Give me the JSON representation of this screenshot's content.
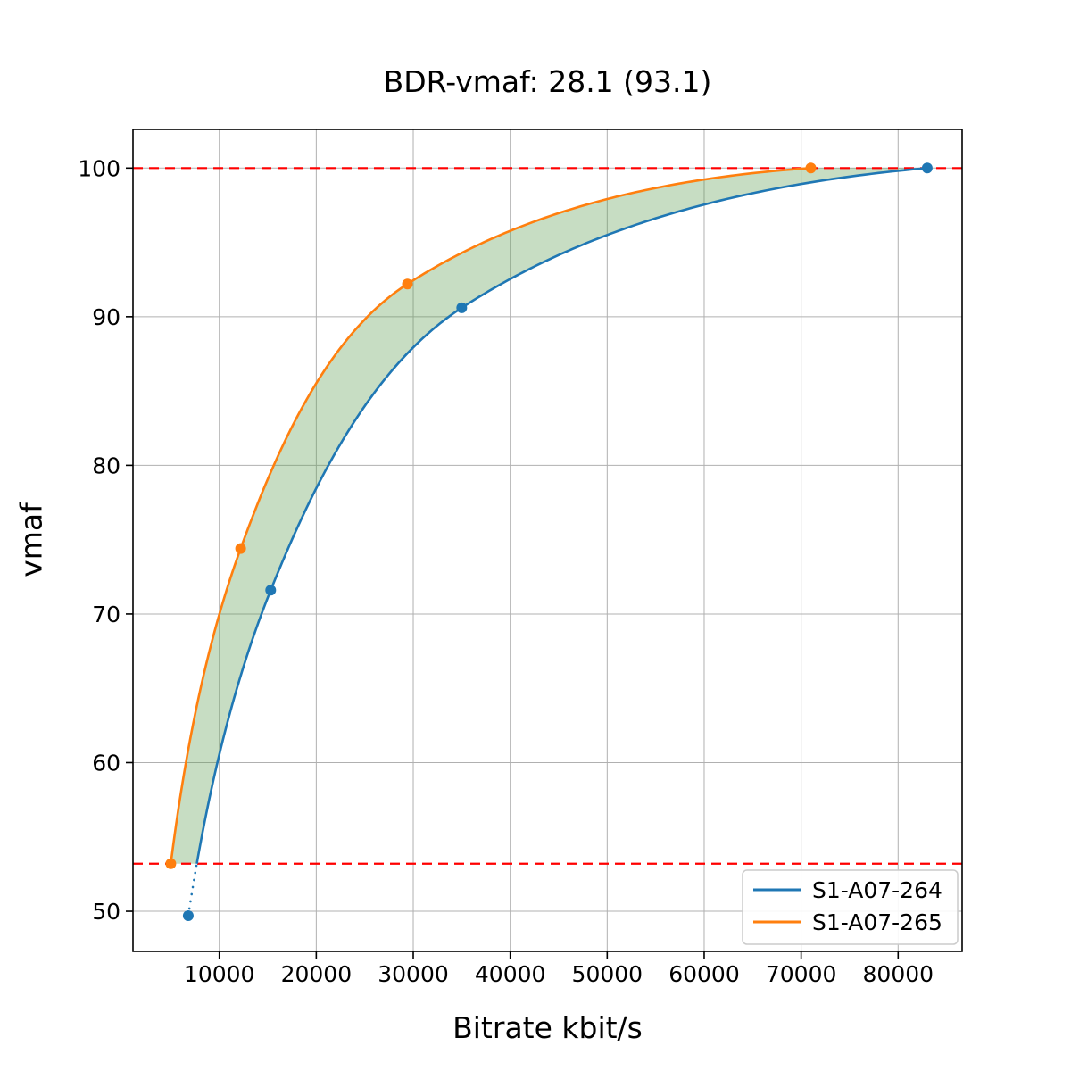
{
  "figure": {
    "title": "BDR-vmaf: 28.1 (93.1)",
    "xlabel": "Bitrate kbit/s",
    "ylabel": "vmaf"
  },
  "chart_data": {
    "type": "line",
    "title": "BDR-vmaf: 28.1 (93.1)",
    "xlabel": "Bitrate kbit/s",
    "ylabel": "vmaf",
    "xlim": [
      1100,
      86600
    ],
    "ylim": [
      47.3,
      102.6
    ],
    "x_ticks": [
      10000,
      20000,
      30000,
      40000,
      50000,
      60000,
      70000,
      80000
    ],
    "y_ticks": [
      50,
      60,
      70,
      80,
      90,
      100
    ],
    "grid": true,
    "grid_color": "#b0b0b0",
    "spine_color": "#000000",
    "series": [
      {
        "name": "S1-A07-264",
        "color": "#1f77b4",
        "points": [
          [
            6800,
            49.7
          ],
          [
            15300,
            71.6
          ],
          [
            35000,
            90.6
          ],
          [
            83000,
            100.0
          ]
        ]
      },
      {
        "name": "S1-A07-265",
        "color": "#ff7f0e",
        "points": [
          [
            5000,
            53.2
          ],
          [
            12200,
            74.4
          ],
          [
            29400,
            92.2
          ],
          [
            71000,
            100.0
          ]
        ]
      }
    ],
    "reference_lines": {
      "color": "#ff0000",
      "style": "dashed",
      "values": [
        53.2,
        100.0
      ]
    },
    "shaded_region": {
      "between": [
        "S1-A07-265",
        "S1-A07-264"
      ],
      "vmaf_range": [
        53.2,
        100.0
      ],
      "color": "#5f9e54",
      "opacity": 0.35
    },
    "out_of_range_style": {
      "series": "S1-A07-264",
      "below_vmaf": 53.2,
      "style": "dotted"
    },
    "legend": {
      "position": "lower right",
      "entries": [
        "S1-A07-264",
        "S1-A07-265"
      ]
    }
  }
}
